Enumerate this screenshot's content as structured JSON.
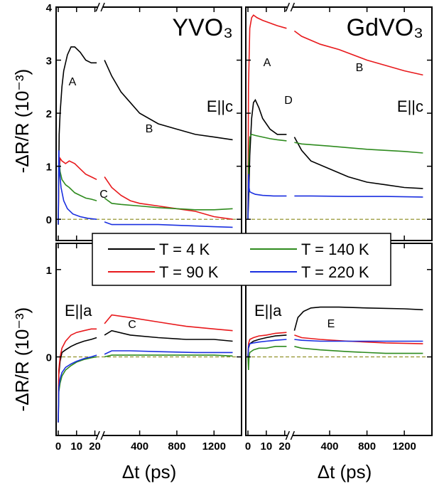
{
  "colors": {
    "T4": "#000000",
    "T90": "#e8191c",
    "T140": "#2e8b1e",
    "T220": "#1a2fe0",
    "zero_line": "#8a8a1a"
  },
  "legend": {
    "entries": [
      {
        "label": "T = 4 K",
        "series": "T4"
      },
      {
        "label": "T = 140 K",
        "series": "T140"
      },
      {
        "label": "T = 90 K",
        "series": "T90"
      },
      {
        "label": "T = 220 K",
        "series": "T220"
      }
    ]
  },
  "axes": {
    "ylabel": "-ΔR/R (10⁻³)",
    "xlabel": "Δt (ps)"
  },
  "chart_data": [
    {
      "type": "line",
      "panel": "top-left",
      "title": "YVO₃",
      "polarization": "E||c",
      "x_ticks_ps": [
        "0",
        "10",
        "20"
      ],
      "x_ticks_long": [
        "400",
        "800",
        "1200"
      ],
      "y_ticks": [
        "0",
        "1",
        "2",
        "3",
        "4"
      ],
      "ylim": [
        -0.4,
        4.0
      ],
      "annotations": [
        "A",
        "B",
        "C"
      ],
      "series": [
        {
          "name": "T = 4 K",
          "key": "T4",
          "x": [
            0,
            0.5,
            1,
            2,
            3,
            5,
            7,
            9,
            12,
            15,
            18,
            21,
            22,
            100,
            200,
            300,
            400,
            600,
            800,
            1000,
            1200,
            1400
          ],
          "y": [
            -0.1,
            1.6,
            2.0,
            2.5,
            2.8,
            3.1,
            3.25,
            3.25,
            3.15,
            3.0,
            2.95,
            2.95,
            3.0,
            2.7,
            2.4,
            2.2,
            2.0,
            1.8,
            1.7,
            1.6,
            1.55,
            1.5
          ]
        },
        {
          "name": "T = 90 K",
          "key": "T90",
          "x": [
            0,
            0.3,
            1,
            2,
            4,
            6,
            9,
            12,
            15,
            18,
            21,
            22,
            100,
            200,
            300,
            400,
            600,
            800,
            1000,
            1200,
            1400
          ],
          "y": [
            -0.1,
            0.8,
            1.15,
            1.1,
            1.05,
            1.1,
            1.05,
            0.95,
            0.85,
            0.8,
            0.75,
            0.8,
            0.6,
            0.45,
            0.35,
            0.3,
            0.25,
            0.2,
            0.15,
            0.05,
            0.0
          ]
        },
        {
          "name": "T = 140 K",
          "key": "T140",
          "x": [
            0,
            0.3,
            1,
            2,
            4,
            6,
            9,
            12,
            15,
            18,
            21,
            22,
            100,
            200,
            400,
            600,
            800,
            1000,
            1200,
            1400
          ],
          "y": [
            -0.1,
            1.2,
            0.9,
            0.75,
            0.65,
            0.6,
            0.5,
            0.45,
            0.4,
            0.38,
            0.35,
            0.4,
            0.3,
            0.28,
            0.25,
            0.22,
            0.2,
            0.18,
            0.18,
            0.2
          ]
        },
        {
          "name": "T = 220 K",
          "key": "T220",
          "x": [
            0,
            0.3,
            0.7,
            1.5,
            3,
            5,
            8,
            12,
            16,
            21,
            22,
            100,
            300,
            600,
            900,
            1200,
            1400
          ],
          "y": [
            -0.1,
            1.3,
            0.9,
            0.6,
            0.35,
            0.2,
            0.1,
            0.05,
            0.02,
            0.0,
            -0.05,
            -0.1,
            -0.1,
            -0.1,
            -0.12,
            -0.14,
            -0.15
          ]
        }
      ]
    },
    {
      "type": "line",
      "panel": "top-right",
      "title": "GdVO₃",
      "polarization": "E||c",
      "annotations": [
        "A",
        "B",
        "D"
      ],
      "ylim": [
        -0.4,
        4.0
      ],
      "series": [
        {
          "name": "T = 4 K",
          "key": "T4",
          "x": [
            0,
            0.5,
            1,
            2,
            3,
            4,
            6,
            8,
            12,
            16,
            21,
            22,
            100,
            200,
            400,
            600,
            800,
            1000,
            1200,
            1400
          ],
          "y": [
            0.0,
            0.5,
            1.2,
            1.9,
            2.2,
            2.25,
            2.1,
            1.9,
            1.7,
            1.6,
            1.6,
            1.55,
            1.3,
            1.1,
            0.95,
            0.8,
            0.7,
            0.65,
            0.6,
            0.58
          ]
        },
        {
          "name": "T = 90 K",
          "key": "T90",
          "x": [
            0,
            0.3,
            1,
            2,
            3,
            5,
            8,
            12,
            16,
            21,
            22,
            100,
            300,
            500,
            800,
            1000,
            1200,
            1400
          ],
          "y": [
            0.0,
            2.5,
            3.6,
            3.8,
            3.85,
            3.8,
            3.75,
            3.7,
            3.65,
            3.6,
            3.55,
            3.45,
            3.3,
            3.2,
            3.0,
            2.9,
            2.8,
            2.72
          ]
        },
        {
          "name": "T = 140 K",
          "key": "T140",
          "x": [
            0,
            0.3,
            1,
            2,
            4,
            8,
            12,
            16,
            21,
            22,
            100,
            400,
            800,
            1200,
            1400
          ],
          "y": [
            0.0,
            1.0,
            1.55,
            1.6,
            1.58,
            1.55,
            1.52,
            1.5,
            1.48,
            1.45,
            1.42,
            1.38,
            1.32,
            1.28,
            1.25
          ]
        },
        {
          "name": "T = 220 K",
          "key": "T220",
          "x": [
            0,
            0.3,
            0.6,
            1,
            2,
            4,
            8,
            14,
            21,
            22,
            200,
            600,
            1000,
            1400
          ],
          "y": [
            0.0,
            0.85,
            0.6,
            0.52,
            0.5,
            0.47,
            0.45,
            0.44,
            0.44,
            0.44,
            0.44,
            0.43,
            0.43,
            0.42
          ]
        }
      ]
    },
    {
      "type": "line",
      "panel": "bottom-left",
      "polarization": "E||a",
      "annotations": [
        "C"
      ],
      "y_ticks": [
        "0",
        "1"
      ],
      "ylim": [
        -0.9,
        1.3
      ],
      "x_ticks_ps": [
        "0",
        "10",
        "20"
      ],
      "x_ticks_long": [
        "400",
        "800",
        "1200"
      ],
      "series": [
        {
          "name": "T = 4 K",
          "key": "T4",
          "x": [
            0,
            0.3,
            1,
            2,
            4,
            7,
            10,
            14,
            18,
            21,
            22,
            100,
            300,
            600,
            900,
            1200,
            1400
          ],
          "y": [
            -0.75,
            -0.2,
            -0.05,
            0.05,
            0.08,
            0.12,
            0.15,
            0.18,
            0.2,
            0.22,
            0.25,
            0.3,
            0.25,
            0.22,
            0.2,
            0.2,
            0.18
          ]
        },
        {
          "name": "T = 90 K",
          "key": "T90",
          "x": [
            0,
            0.3,
            1,
            2,
            4,
            7,
            10,
            14,
            18,
            21,
            22,
            100,
            300,
            600,
            900,
            1200,
            1400
          ],
          "y": [
            -0.75,
            -0.15,
            0.0,
            0.1,
            0.18,
            0.25,
            0.28,
            0.3,
            0.32,
            0.32,
            0.38,
            0.48,
            0.45,
            0.4,
            0.35,
            0.32,
            0.3
          ]
        },
        {
          "name": "T = 140 K",
          "key": "T140",
          "x": [
            0,
            0.3,
            1,
            2,
            4,
            7,
            10,
            14,
            18,
            21,
            22,
            100,
            400,
            800,
            1200,
            1400
          ],
          "y": [
            -0.75,
            -0.4,
            -0.3,
            -0.22,
            -0.15,
            -0.1,
            -0.06,
            -0.03,
            -0.01,
            0.0,
            0.0,
            0.02,
            0.02,
            0.02,
            0.02,
            0.01
          ]
        },
        {
          "name": "T = 220 K",
          "key": "T220",
          "x": [
            0,
            0.3,
            1,
            2,
            4,
            7,
            10,
            14,
            18,
            21,
            22,
            100,
            300,
            600,
            1000,
            1400
          ],
          "y": [
            -0.75,
            -0.35,
            -0.25,
            -0.18,
            -0.12,
            -0.08,
            -0.05,
            -0.02,
            0.0,
            0.02,
            0.03,
            0.07,
            0.07,
            0.06,
            0.05,
            0.05
          ]
        }
      ]
    },
    {
      "type": "line",
      "panel": "bottom-right",
      "polarization": "E||a",
      "annotations": [
        "E"
      ],
      "ylim": [
        -0.9,
        1.3
      ],
      "series": [
        {
          "name": "T = 4 K",
          "key": "T4",
          "x": [
            0,
            0.3,
            1,
            3,
            6,
            10,
            15,
            21,
            22,
            60,
            120,
            200,
            300,
            500,
            800,
            1200,
            1400
          ],
          "y": [
            0.0,
            0.1,
            0.15,
            0.18,
            0.2,
            0.22,
            0.24,
            0.25,
            0.3,
            0.45,
            0.52,
            0.56,
            0.57,
            0.57,
            0.56,
            0.55,
            0.54
          ]
        },
        {
          "name": "T = 90 K",
          "key": "T90",
          "x": [
            0,
            0.3,
            1,
            3,
            6,
            10,
            15,
            21,
            22,
            100,
            300,
            600,
            1000,
            1400
          ],
          "y": [
            0.0,
            0.15,
            0.2,
            0.22,
            0.24,
            0.25,
            0.27,
            0.28,
            0.25,
            0.22,
            0.2,
            0.18,
            0.16,
            0.15
          ]
        },
        {
          "name": "T = 140 K",
          "key": "T140",
          "x": [
            0,
            0.3,
            0.6,
            1,
            3,
            6,
            10,
            15,
            21,
            22,
            100,
            300,
            600,
            1000,
            1400
          ],
          "y": [
            0.0,
            -0.15,
            0.0,
            0.05,
            0.08,
            0.1,
            0.1,
            0.12,
            0.12,
            0.12,
            0.1,
            0.08,
            0.06,
            0.04,
            0.04
          ]
        },
        {
          "name": "T = 220 K",
          "key": "T220",
          "x": [
            0,
            0.3,
            1,
            3,
            6,
            10,
            15,
            21,
            22,
            100,
            300,
            700,
            1000,
            1400
          ],
          "y": [
            0.0,
            0.12,
            0.15,
            0.16,
            0.17,
            0.18,
            0.19,
            0.2,
            0.2,
            0.19,
            0.18,
            0.18,
            0.18,
            0.18
          ]
        }
      ]
    }
  ]
}
